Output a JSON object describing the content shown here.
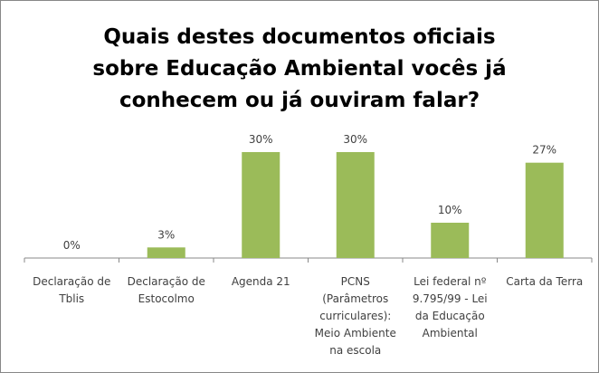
{
  "chart_data": {
    "type": "bar",
    "title": "Quais destes documentos oficiais sobre Educação Ambiental vocês já conhecem ou já ouviram falar?",
    "categories": [
      "Declaração de Tblis",
      "Declaração de Estocolmo",
      "Agenda 21",
      "PCNS (Parâmetros curriculares): Meio Ambiente na escola",
      "Lei federal nº 9.795/99 - Lei da Educação Ambiental",
      "Carta da Terra"
    ],
    "values": [
      0,
      3,
      30,
      30,
      10,
      27
    ],
    "value_labels": [
      "0%",
      "3%",
      "30%",
      "30%",
      "10%",
      "27%"
    ],
    "color": "#9bbb59"
  }
}
